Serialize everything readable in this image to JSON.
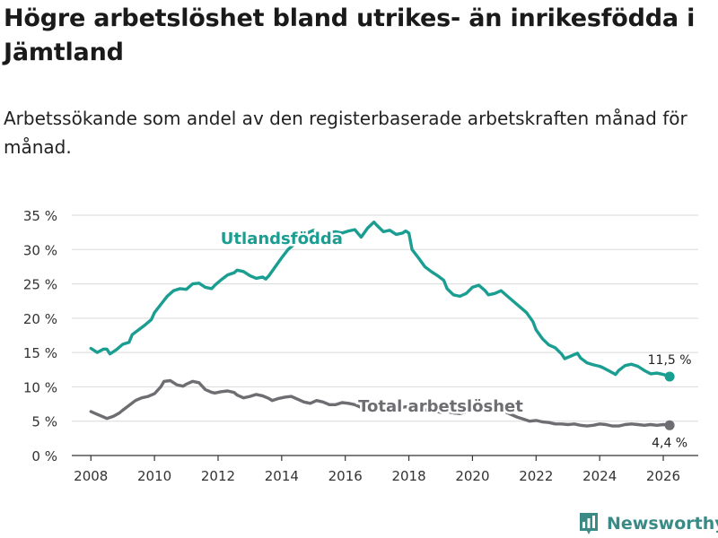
{
  "title": "Högre arbetslöshet bland utrikes- än inrikesfödda i Jämtland",
  "subtitle": "Arbetssökande som andel av den registerbaserade arbetskraften månad för månad.",
  "brand": {
    "name": "Newsworthy",
    "icon": "bar-chart-logo-icon",
    "color": "#3a8a86"
  },
  "chart_data": {
    "type": "line",
    "title": "Högre arbetslöshet bland utrikes- än inrikesfödda i Jämtland",
    "xlabel": "",
    "ylabel": "",
    "xlim": [
      2007.4,
      2027.1
    ],
    "ylim": [
      0,
      35
    ],
    "x_ticks": [
      2008,
      2010,
      2012,
      2014,
      2016,
      2018,
      2020,
      2022,
      2024,
      2026
    ],
    "y_ticks": [
      {
        "value": 0,
        "label": "0 %"
      },
      {
        "value": 5,
        "label": "5 %"
      },
      {
        "value": 10,
        "label": "10 %"
      },
      {
        "value": 15,
        "label": "15 %"
      },
      {
        "value": 20,
        "label": "20 %"
      },
      {
        "value": 25,
        "label": "25 %"
      },
      {
        "value": 30,
        "label": "30 %"
      },
      {
        "value": 35,
        "label": "35 %"
      }
    ],
    "grid": true,
    "series": [
      {
        "name": "Utlandsfödda",
        "color": "#1a9e91",
        "label_at": [
          2014.0,
          30.8
        ],
        "end_label": "11,5 %",
        "points": [
          [
            2008.0,
            15.6
          ],
          [
            2008.2,
            15.0
          ],
          [
            2008.4,
            15.5
          ],
          [
            2008.5,
            15.5
          ],
          [
            2008.6,
            14.8
          ],
          [
            2008.8,
            15.4
          ],
          [
            2009.0,
            16.2
          ],
          [
            2009.2,
            16.5
          ],
          [
            2009.3,
            17.6
          ],
          [
            2009.5,
            18.3
          ],
          [
            2009.7,
            19.0
          ],
          [
            2009.9,
            19.8
          ],
          [
            2010.0,
            20.8
          ],
          [
            2010.2,
            22.0
          ],
          [
            2010.4,
            23.2
          ],
          [
            2010.6,
            24.0
          ],
          [
            2010.8,
            24.3
          ],
          [
            2011.0,
            24.2
          ],
          [
            2011.2,
            25.0
          ],
          [
            2011.4,
            25.1
          ],
          [
            2011.6,
            24.5
          ],
          [
            2011.8,
            24.3
          ],
          [
            2011.9,
            24.8
          ],
          [
            2012.1,
            25.6
          ],
          [
            2012.3,
            26.3
          ],
          [
            2012.5,
            26.6
          ],
          [
            2012.6,
            27.0
          ],
          [
            2012.8,
            26.8
          ],
          [
            2013.0,
            26.2
          ],
          [
            2013.2,
            25.8
          ],
          [
            2013.4,
            26.0
          ],
          [
            2013.5,
            25.7
          ],
          [
            2013.6,
            26.2
          ],
          [
            2013.8,
            27.5
          ],
          [
            2014.0,
            28.8
          ],
          [
            2014.2,
            30.0
          ],
          [
            2014.4,
            30.8
          ],
          [
            2014.6,
            31.7
          ],
          [
            2014.8,
            32.4
          ],
          [
            2015.0,
            32.8
          ],
          [
            2015.1,
            32.2
          ],
          [
            2015.3,
            31.6
          ],
          [
            2015.5,
            32.5
          ],
          [
            2015.7,
            32.6
          ],
          [
            2015.9,
            32.4
          ],
          [
            2016.1,
            32.7
          ],
          [
            2016.3,
            32.9
          ],
          [
            2016.5,
            31.8
          ],
          [
            2016.7,
            33.1
          ],
          [
            2016.9,
            34.0
          ],
          [
            2017.0,
            33.5
          ],
          [
            2017.2,
            32.6
          ],
          [
            2017.4,
            32.8
          ],
          [
            2017.6,
            32.2
          ],
          [
            2017.8,
            32.4
          ],
          [
            2017.9,
            32.7
          ],
          [
            2018.0,
            32.4
          ],
          [
            2018.1,
            30.0
          ],
          [
            2018.3,
            28.8
          ],
          [
            2018.5,
            27.5
          ],
          [
            2018.7,
            26.8
          ],
          [
            2018.9,
            26.2
          ],
          [
            2019.1,
            25.5
          ],
          [
            2019.2,
            24.3
          ],
          [
            2019.4,
            23.4
          ],
          [
            2019.6,
            23.2
          ],
          [
            2019.8,
            23.6
          ],
          [
            2020.0,
            24.5
          ],
          [
            2020.2,
            24.8
          ],
          [
            2020.4,
            24.0
          ],
          [
            2020.5,
            23.4
          ],
          [
            2020.7,
            23.6
          ],
          [
            2020.9,
            24.0
          ],
          [
            2021.1,
            23.2
          ],
          [
            2021.3,
            22.4
          ],
          [
            2021.5,
            21.6
          ],
          [
            2021.7,
            20.8
          ],
          [
            2021.9,
            19.5
          ],
          [
            2022.0,
            18.3
          ],
          [
            2022.2,
            17.0
          ],
          [
            2022.4,
            16.1
          ],
          [
            2022.6,
            15.7
          ],
          [
            2022.8,
            14.8
          ],
          [
            2022.9,
            14.1
          ],
          [
            2023.1,
            14.5
          ],
          [
            2023.3,
            14.9
          ],
          [
            2023.4,
            14.2
          ],
          [
            2023.6,
            13.5
          ],
          [
            2023.8,
            13.2
          ],
          [
            2024.0,
            13.0
          ],
          [
            2024.1,
            12.8
          ],
          [
            2024.3,
            12.3
          ],
          [
            2024.5,
            11.8
          ],
          [
            2024.6,
            12.4
          ],
          [
            2024.8,
            13.1
          ],
          [
            2025.0,
            13.3
          ],
          [
            2025.2,
            13.0
          ],
          [
            2025.4,
            12.4
          ],
          [
            2025.6,
            11.9
          ],
          [
            2025.8,
            12.0
          ],
          [
            2026.0,
            11.8
          ],
          [
            2026.2,
            11.5
          ]
        ]
      },
      {
        "name": "Total arbetslöshet",
        "color": "#6e6d72",
        "label_at": [
          2019.0,
          6.4
        ],
        "end_label": "4,4 %",
        "points": [
          [
            2008.0,
            6.4
          ],
          [
            2008.2,
            6.0
          ],
          [
            2008.4,
            5.6
          ],
          [
            2008.5,
            5.4
          ],
          [
            2008.7,
            5.7
          ],
          [
            2008.9,
            6.2
          ],
          [
            2009.0,
            6.6
          ],
          [
            2009.2,
            7.3
          ],
          [
            2009.4,
            8.0
          ],
          [
            2009.6,
            8.4
          ],
          [
            2009.8,
            8.6
          ],
          [
            2010.0,
            9.0
          ],
          [
            2010.2,
            10.0
          ],
          [
            2010.3,
            10.8
          ],
          [
            2010.5,
            10.9
          ],
          [
            2010.7,
            10.3
          ],
          [
            2010.9,
            10.1
          ],
          [
            2011.0,
            10.4
          ],
          [
            2011.2,
            10.8
          ],
          [
            2011.4,
            10.6
          ],
          [
            2011.6,
            9.6
          ],
          [
            2011.8,
            9.2
          ],
          [
            2011.9,
            9.1
          ],
          [
            2012.1,
            9.3
          ],
          [
            2012.3,
            9.4
          ],
          [
            2012.5,
            9.2
          ],
          [
            2012.6,
            8.8
          ],
          [
            2012.8,
            8.4
          ],
          [
            2013.0,
            8.6
          ],
          [
            2013.2,
            8.9
          ],
          [
            2013.4,
            8.7
          ],
          [
            2013.6,
            8.3
          ],
          [
            2013.7,
            8.0
          ],
          [
            2013.9,
            8.3
          ],
          [
            2014.1,
            8.5
          ],
          [
            2014.3,
            8.6
          ],
          [
            2014.5,
            8.2
          ],
          [
            2014.7,
            7.8
          ],
          [
            2014.9,
            7.6
          ],
          [
            2015.1,
            8.0
          ],
          [
            2015.3,
            7.8
          ],
          [
            2015.5,
            7.4
          ],
          [
            2015.7,
            7.4
          ],
          [
            2015.9,
            7.7
          ],
          [
            2016.1,
            7.6
          ],
          [
            2016.3,
            7.4
          ],
          [
            2016.5,
            7.0
          ],
          [
            2016.7,
            7.2
          ],
          [
            2016.9,
            7.5
          ],
          [
            2017.1,
            7.4
          ],
          [
            2017.3,
            7.2
          ],
          [
            2017.5,
            7.0
          ],
          [
            2017.7,
            6.9
          ],
          [
            2017.9,
            7.1
          ],
          [
            2018.0,
            7.0
          ],
          [
            2018.2,
            6.8
          ],
          [
            2018.4,
            6.7
          ],
          [
            2018.6,
            6.6
          ],
          [
            2018.8,
            6.5
          ],
          [
            2019.0,
            6.3
          ],
          [
            2019.2,
            6.4
          ],
          [
            2019.4,
            6.2
          ],
          [
            2019.6,
            6.1
          ],
          [
            2019.8,
            6.4
          ],
          [
            2020.0,
            7.0
          ],
          [
            2020.2,
            7.5
          ],
          [
            2020.4,
            7.2
          ],
          [
            2020.6,
            6.9
          ],
          [
            2020.8,
            6.6
          ],
          [
            2021.0,
            6.4
          ],
          [
            2021.2,
            6.0
          ],
          [
            2021.4,
            5.6
          ],
          [
            2021.6,
            5.3
          ],
          [
            2021.8,
            5.0
          ],
          [
            2022.0,
            5.1
          ],
          [
            2022.2,
            4.9
          ],
          [
            2022.4,
            4.8
          ],
          [
            2022.6,
            4.6
          ],
          [
            2022.8,
            4.6
          ],
          [
            2023.0,
            4.5
          ],
          [
            2023.2,
            4.6
          ],
          [
            2023.4,
            4.4
          ],
          [
            2023.6,
            4.3
          ],
          [
            2023.8,
            4.4
          ],
          [
            2024.0,
            4.6
          ],
          [
            2024.2,
            4.5
          ],
          [
            2024.4,
            4.3
          ],
          [
            2024.6,
            4.3
          ],
          [
            2024.8,
            4.5
          ],
          [
            2025.0,
            4.6
          ],
          [
            2025.2,
            4.5
          ],
          [
            2025.4,
            4.4
          ],
          [
            2025.6,
            4.5
          ],
          [
            2025.8,
            4.4
          ],
          [
            2026.0,
            4.5
          ],
          [
            2026.2,
            4.4
          ]
        ]
      }
    ]
  }
}
